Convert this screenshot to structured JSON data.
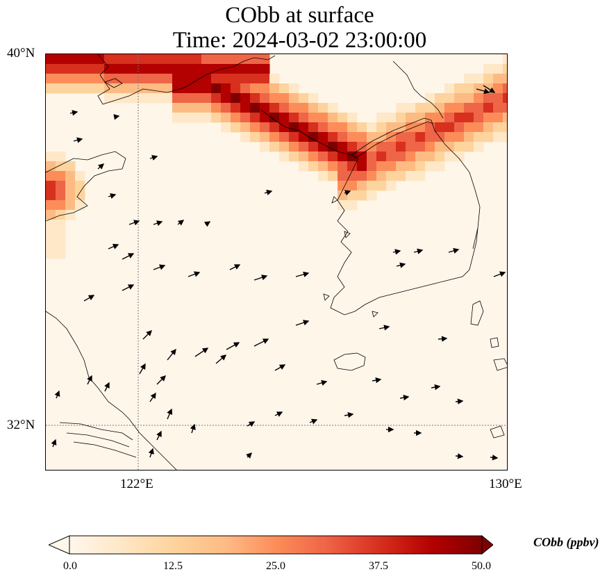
{
  "title": {
    "line1": "CObb at surface",
    "line2": "Time: 2024-03-02 23:00:00"
  },
  "axes": {
    "lat_ticks": [
      {
        "label": "40°N",
        "value": 40
      },
      {
        "label": "32°N",
        "value": 32
      }
    ],
    "lon_ticks": [
      {
        "label": "122°E",
        "value": 122
      },
      {
        "label": "130°E",
        "value": 130
      }
    ],
    "lon_range": [
      120,
      130
    ],
    "lat_range": [
      31,
      40
    ]
  },
  "colorbar": {
    "label": "CObb (ppbv)",
    "min": 0.0,
    "max": 50.0,
    "ticks": [
      "0.0",
      "12.5",
      "25.0",
      "37.5",
      "50.0"
    ],
    "colors": [
      "#fff7ec",
      "#fee8c8",
      "#fdd49e",
      "#fdbb84",
      "#fc8d59",
      "#ef6548",
      "#d7301f",
      "#b30000",
      "#7f0000"
    ]
  },
  "chart_data": {
    "type": "heatmap",
    "title": "CObb at surface\nTime: 2024-03-02 23:00:00",
    "variable": "CObb",
    "units": "ppbv",
    "vmin": 0,
    "vmax": 50,
    "extend": "both",
    "plume_max_band": "40-50 ppbv over northern Yellow Sea / Bohai coast (approx 120.5–127°E, 38–40°N)",
    "plume_west": "~40 ppbv near 120°E, 36.5–38°N",
    "background": "0–5 ppbv over Yellow Sea and Korean Peninsula",
    "wind_vectors": "predominantly south-westerly to westerly arrows"
  }
}
